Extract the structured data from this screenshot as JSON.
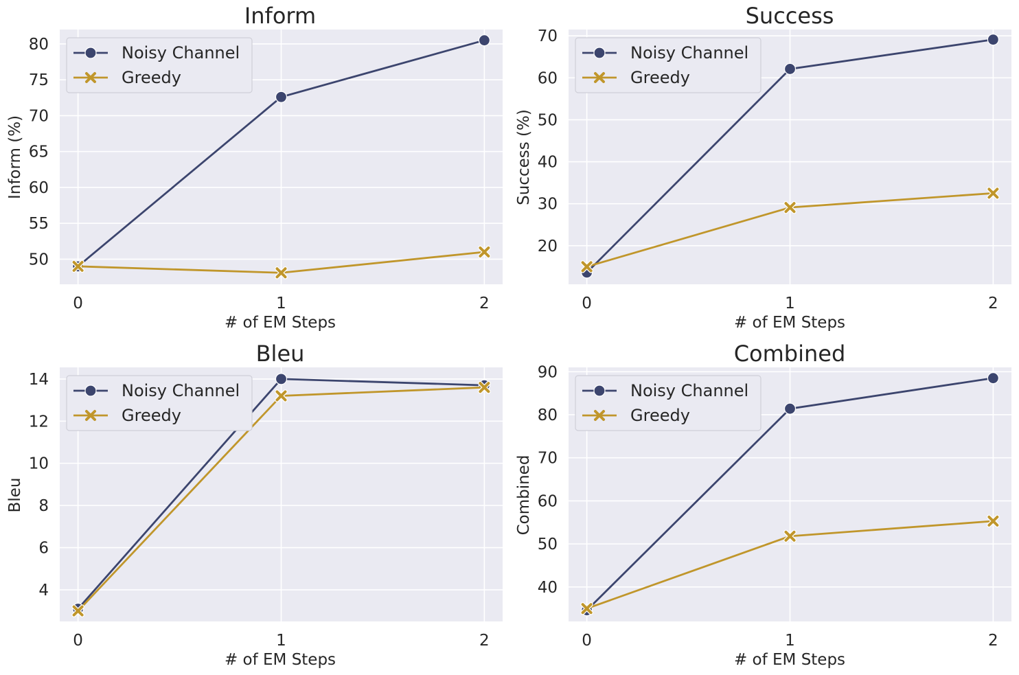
{
  "colors": {
    "noisy": "#3c456e",
    "greedy": "#c0962b"
  },
  "legend": {
    "noisy_label": "Noisy Channel",
    "greedy_label": "Greedy"
  },
  "chart_data": [
    {
      "type": "line",
      "title": "Inform",
      "xlabel": "# of EM Steps",
      "ylabel": "Inform (%)",
      "x": [
        0,
        1,
        2
      ],
      "x_ticks": [
        "0",
        "1",
        "2"
      ],
      "y_ticks": [
        50,
        55,
        60,
        65,
        70,
        75,
        80
      ],
      "ylim": [
        46.5,
        82.0
      ],
      "grid": true,
      "legend": "top-left",
      "series": [
        {
          "name": "Noisy Channel",
          "marker": "circle",
          "values": [
            49.0,
            72.6,
            80.5
          ]
        },
        {
          "name": "Greedy",
          "marker": "x",
          "values": [
            49.0,
            48.1,
            51.0
          ]
        }
      ]
    },
    {
      "type": "line",
      "title": "Success",
      "xlabel": "# of EM Steps",
      "ylabel": "Success (%)",
      "x": [
        0,
        1,
        2
      ],
      "x_ticks": [
        "0",
        "1",
        "2"
      ],
      "y_ticks": [
        20,
        30,
        40,
        50,
        60,
        70
      ],
      "ylim": [
        10.8,
        71.5
      ],
      "grid": true,
      "legend": "top-left",
      "series": [
        {
          "name": "Noisy Channel",
          "marker": "circle",
          "values": [
            13.6,
            62.1,
            69.1
          ]
        },
        {
          "name": "Greedy",
          "marker": "x",
          "values": [
            15.0,
            29.1,
            32.5
          ]
        }
      ]
    },
    {
      "type": "line",
      "title": "Bleu",
      "xlabel": "# of EM Steps",
      "ylabel": "Bleu",
      "x": [
        0,
        1,
        2
      ],
      "x_ticks": [
        "0",
        "1",
        "2"
      ],
      "y_ticks": [
        4,
        6,
        8,
        10,
        12,
        14
      ],
      "ylim": [
        2.5,
        14.55
      ],
      "grid": true,
      "legend": "top-left",
      "series": [
        {
          "name": "Noisy Channel",
          "marker": "circle",
          "values": [
            3.1,
            14.0,
            13.7
          ]
        },
        {
          "name": "Greedy",
          "marker": "x",
          "values": [
            3.0,
            13.2,
            13.6
          ]
        }
      ]
    },
    {
      "type": "line",
      "title": "Combined",
      "xlabel": "# of EM Steps",
      "ylabel": "Combined",
      "x": [
        0,
        1,
        2
      ],
      "x_ticks": [
        "0",
        "1",
        "2"
      ],
      "y_ticks": [
        40,
        50,
        60,
        70,
        80,
        90
      ],
      "ylim": [
        32.0,
        91.0
      ],
      "grid": true,
      "legend": "top-left",
      "series": [
        {
          "name": "Noisy Channel",
          "marker": "circle",
          "values": [
            34.6,
            81.4,
            88.5
          ]
        },
        {
          "name": "Greedy",
          "marker": "x",
          "values": [
            35.0,
            51.8,
            55.3
          ]
        }
      ]
    }
  ]
}
